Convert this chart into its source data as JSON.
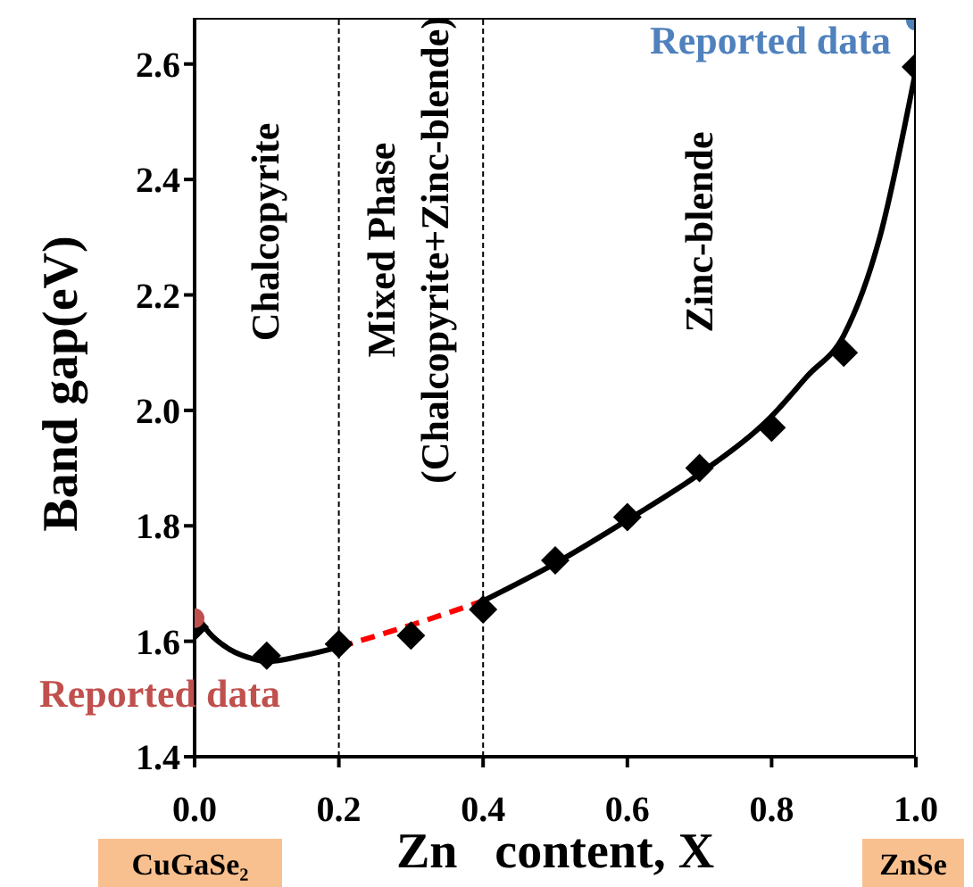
{
  "chart_data": {
    "type": "scatter",
    "xlabel": "Zn   content, X",
    "ylabel": "Band gap(eV)",
    "xlim": [
      0,
      1
    ],
    "xticks": [
      {
        "value": 0,
        "label": "0.0"
      },
      0.2,
      0.4,
      0.6,
      0.8,
      {
        "value": 1,
        "label": "1.0"
      }
    ],
    "ylim": [
      1.4,
      2.68
    ],
    "yticks": [
      1.4,
      1.6,
      1.8,
      {
        "value": 2,
        "label": "2.0"
      },
      2.2,
      2.4,
      2.6
    ],
    "grid": false,
    "series": [
      {
        "marker": "diamond",
        "color": "#000000",
        "x": [
          0,
          0.1,
          0.2,
          0.3,
          0.4,
          0.5,
          0.6,
          0.7,
          0.8,
          0.9,
          1.0
        ],
        "values": [
          1.625,
          1.575,
          1.595,
          1.61,
          1.655,
          1.74,
          1.815,
          1.9,
          1.97,
          2.1,
          2.595
        ]
      },
      {
        "type": "line",
        "marker": "none",
        "line_style": "solid",
        "color": "#000000",
        "x": [
          0,
          0.02,
          0.05,
          0.08,
          0.1,
          0.15,
          0.2
        ],
        "values": [
          1.65,
          1.615,
          1.585,
          1.57,
          1.565,
          1.575,
          1.59
        ]
      },
      {
        "type": "line",
        "marker": "none",
        "line_style": "dashed",
        "color": "#ff0000",
        "x": [
          0.2,
          0.3,
          0.4
        ],
        "values": [
          1.59,
          1.628,
          1.67
        ]
      },
      {
        "type": "line",
        "marker": "none",
        "line_style": "solid",
        "color": "#000000",
        "x": [
          0.4,
          0.5,
          0.6,
          0.7,
          0.8,
          0.85,
          0.9,
          0.95,
          1.0
        ],
        "values": [
          1.67,
          1.735,
          1.81,
          1.89,
          1.99,
          2.06,
          2.13,
          2.3,
          2.59
        ]
      },
      {
        "type": "scatter",
        "marker": "circle",
        "name": "Reported data",
        "color": "#c0504d",
        "x": [
          0
        ],
        "values": [
          1.64
        ]
      },
      {
        "type": "scatter",
        "marker": "circle",
        "name": "Reported data",
        "color": "#4f81bd",
        "x": [
          1.0
        ],
        "values": [
          2.675
        ]
      }
    ],
    "ref_lines": [
      {
        "axis": "x",
        "value": 0.2,
        "line_style": "dashed",
        "color": "#000000"
      },
      {
        "axis": "x",
        "value": 0.4,
        "line_style": "dashed",
        "color": "#000000"
      }
    ],
    "annotations": [
      "Chalcopyrite",
      "Mixed Phase",
      "(Chalcopyrite+Zinc-blende)",
      "Zinc-blende",
      "CuGaSe₂",
      "ZnSe"
    ]
  }
}
